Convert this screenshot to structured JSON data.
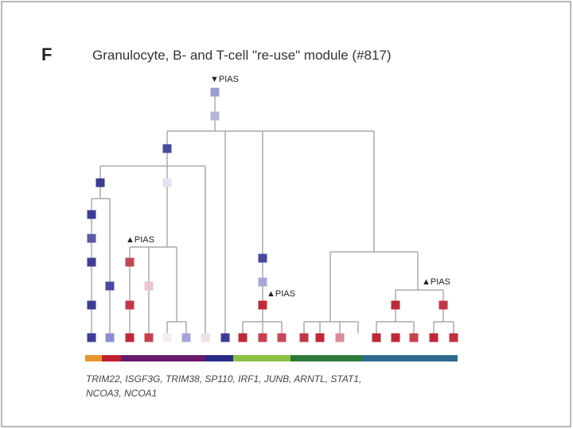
{
  "panel_label": "F",
  "title": "Granulocyte, B- and T-cell \"re-use\" module (#817)",
  "annotations": [
    "▼PIAS",
    "▲PIAS",
    "▲PIAS",
    "▲PIAS"
  ],
  "gene_list": [
    "TRIM22, ISGF3G, TRIM38, SP110, IRF1, JUNB, ARNTL, STAT1,",
    "NCOA3, NCOA1"
  ]
}
